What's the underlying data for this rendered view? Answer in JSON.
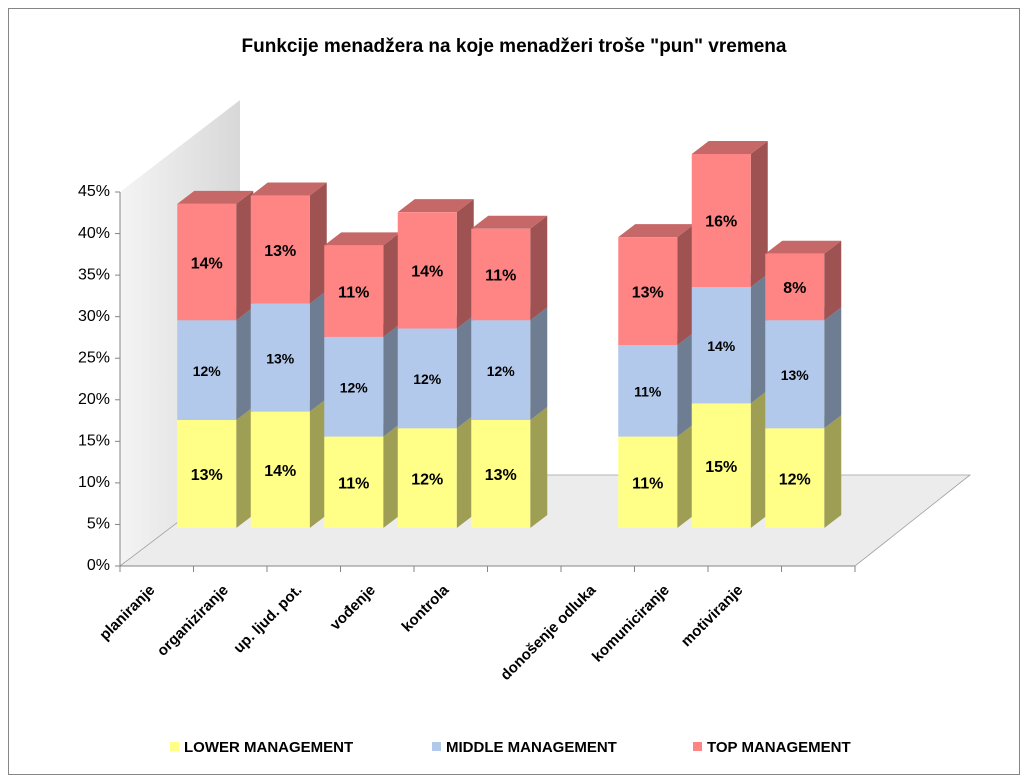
{
  "chart_data": {
    "type": "bar3d_stacked",
    "title": "Funkcije menadžera na koje menadžeri troše \"pun\" vremena",
    "categories": [
      "planiranje",
      "organiziranje",
      "up. ljud. pot.",
      "vođenje",
      "kontrola",
      null,
      "donošenje odluka",
      "komuniciranje",
      "motiviranje",
      null
    ],
    "series": [
      {
        "name": "LOWER MANAGEMENT",
        "color": "#ffff88",
        "values": [
          13,
          14,
          11,
          12,
          13,
          null,
          11,
          15,
          12,
          null
        ],
        "value_labels": [
          "13%",
          "14%",
          "11%",
          "12%",
          "13%",
          null,
          "11%",
          "15%",
          "12%",
          null
        ]
      },
      {
        "name": "MIDDLE MANAGEMENT",
        "color": "#b3c9ec",
        "values": [
          12,
          13,
          12,
          12,
          12,
          null,
          11,
          14,
          13,
          null
        ],
        "value_labels": [
          "12%",
          "13%",
          "12%",
          "12%",
          "12%",
          null,
          "11%",
          "14%",
          "13%",
          null
        ]
      },
      {
        "name": "TOP MANAGEMENT",
        "color": "#ff8585",
        "values": [
          14,
          13,
          11,
          14,
          11,
          null,
          13,
          16,
          8,
          null
        ],
        "value_labels": [
          "14%",
          "13%",
          "11%",
          "14%",
          "11%",
          null,
          "13%",
          "16%",
          "8%",
          null
        ]
      }
    ],
    "ylim": [
      0,
      45
    ],
    "yticks": [
      {
        "value": 0,
        "label": "0%"
      },
      {
        "value": 5,
        "label": "5%"
      },
      {
        "value": 10,
        "label": "10%"
      },
      {
        "value": 15,
        "label": "15%"
      },
      {
        "value": 20,
        "label": "20%"
      },
      {
        "value": 25,
        "label": "25%"
      },
      {
        "value": 30,
        "label": "30%"
      },
      {
        "value": 35,
        "label": "35%"
      },
      {
        "value": 40,
        "label": "40%"
      },
      {
        "value": 45,
        "label": "45%"
      }
    ],
    "grid": false,
    "legend": "bottom"
  }
}
